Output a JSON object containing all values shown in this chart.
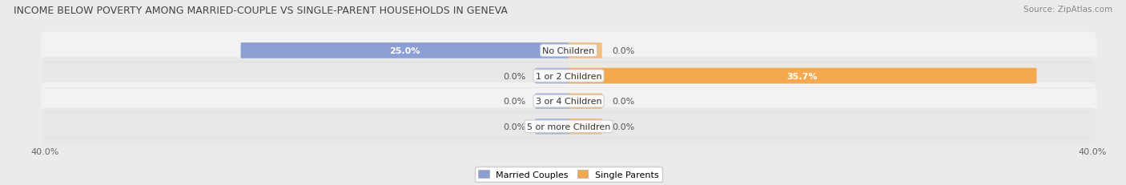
{
  "title": "INCOME BELOW POVERTY AMONG MARRIED-COUPLE VS SINGLE-PARENT HOUSEHOLDS IN GENEVA",
  "source": "Source: ZipAtlas.com",
  "categories": [
    "No Children",
    "1 or 2 Children",
    "3 or 4 Children",
    "5 or more Children"
  ],
  "married_couples": [
    25.0,
    0.0,
    0.0,
    0.0
  ],
  "single_parents": [
    0.0,
    35.7,
    0.0,
    0.0
  ],
  "married_color": "#8b9fd4",
  "single_color": "#f5a84e",
  "stub_size": 2.5,
  "bar_height": 0.52,
  "xlim_left": -40.0,
  "xlim_right": 40.0,
  "row_colors": [
    "#f2f2f2",
    "#e8e8e8"
  ],
  "background_color": "#ebebeb",
  "title_fontsize": 9.0,
  "source_fontsize": 7.5,
  "label_fontsize": 8.0,
  "cat_fontsize": 8.0,
  "legend_fontsize": 8.0,
  "tick_label_color": "#666666",
  "value_label_color_inside": "#ffffff",
  "value_label_color_outside": "#555555"
}
